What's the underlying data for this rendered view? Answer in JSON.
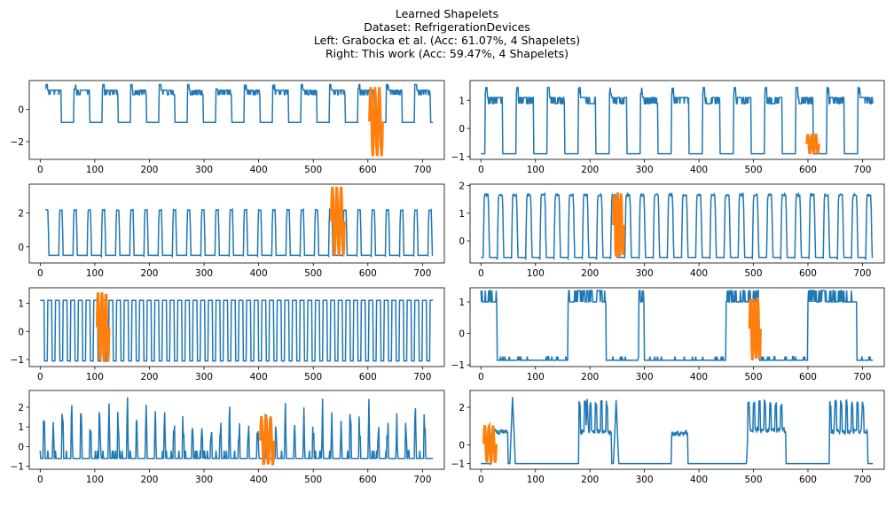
{
  "figure": {
    "title_lines": [
      "Learned Shapelets",
      "Dataset: RefrigerationDevices",
      "Left: Grabocka et al. (Acc: 61.07%, 4 Shapelets)",
      "Right: This work (Acc: 59.47%, 4 Shapelets)"
    ],
    "series_color": "#1f77b4",
    "shapelet_color": "#ff7f0e"
  },
  "chart_data": [
    {
      "id": "left-1",
      "type": "line",
      "column": "left",
      "row": 1,
      "xlim": [
        -20,
        740
      ],
      "ylim": [
        -3.1,
        1.8
      ],
      "xticks": [
        0,
        100,
        200,
        300,
        400,
        500,
        600,
        700
      ],
      "yticks": [
        -2,
        0
      ],
      "pattern": "cycle",
      "n": 720,
      "period": 52,
      "phase": 10,
      "on_frac": 0.55,
      "low": -0.8,
      "high": 1.2,
      "noise": 0.28,
      "start": 10,
      "end": 720,
      "shapelet": {
        "start": 603,
        "end": 627,
        "min": -2.9,
        "max": 1.4
      }
    },
    {
      "id": "left-2",
      "type": "line",
      "column": "left",
      "row": 2,
      "xlim": [
        -20,
        740
      ],
      "ylim": [
        -0.95,
        3.7
      ],
      "xticks": [
        0,
        100,
        200,
        300,
        400,
        500,
        600,
        700
      ],
      "yticks": [
        0,
        2
      ],
      "pattern": "pulses",
      "n": 720,
      "period": 26,
      "phase": 8,
      "on_frac": 0.3,
      "low": -0.5,
      "high": 2.2,
      "noise": 0.05,
      "start": 10,
      "end": 720,
      "shapelet": {
        "start": 533,
        "end": 557,
        "min": -0.5,
        "max": 3.55
      }
    },
    {
      "id": "left-3",
      "type": "line",
      "column": "left",
      "row": 3,
      "xlim": [
        -20,
        740
      ],
      "ylim": [
        -1.25,
        1.55
      ],
      "xticks": [
        0,
        100,
        200,
        300,
        400,
        500,
        600,
        700
      ],
      "yticks": [
        -1,
        0,
        1
      ],
      "pattern": "square",
      "n": 720,
      "period": 14,
      "phase": 0,
      "on_frac": 0.55,
      "low": -1.05,
      "high": 1.1,
      "noise": 0.02,
      "start": 0,
      "end": 720,
      "shapelet": {
        "start": 104,
        "end": 126,
        "min": -1.1,
        "max": 1.4
      }
    },
    {
      "id": "left-4",
      "type": "line",
      "column": "left",
      "row": 4,
      "xlim": [
        -20,
        740
      ],
      "ylim": [
        -1.15,
        2.85
      ],
      "xticks": [
        0,
        100,
        200,
        300,
        400,
        500,
        600,
        700
      ],
      "yticks": [
        -1,
        0,
        1,
        2
      ],
      "pattern": "spikes",
      "n": 720,
      "period": 17,
      "phase": 5,
      "on_frac": 0.22,
      "low": -0.6,
      "high": 2.6,
      "noise": 0.2,
      "start": 0,
      "end": 720,
      "shapelet": {
        "start": 403,
        "end": 428,
        "min": -0.95,
        "max": 1.55
      }
    },
    {
      "id": "right-1",
      "type": "line",
      "column": "right",
      "row": 1,
      "xlim": [
        -20,
        740
      ],
      "ylim": [
        -1.1,
        1.7
      ],
      "xticks": [
        0,
        100,
        200,
        300,
        400,
        500,
        600,
        700
      ],
      "yticks": [
        -1,
        0,
        1
      ],
      "pattern": "cycle",
      "n": 720,
      "period": 57,
      "phase": 8,
      "on_frac": 0.55,
      "low": -0.9,
      "high": 1.1,
      "noise": 0.22,
      "start": 0,
      "end": 720,
      "shapelet": {
        "start": 598,
        "end": 620,
        "min": -0.9,
        "max": -0.2
      }
    },
    {
      "id": "right-2",
      "type": "line",
      "column": "right",
      "row": 2,
      "xlim": [
        -20,
        740
      ],
      "ylim": [
        -0.8,
        2.05
      ],
      "xticks": [
        0,
        100,
        200,
        300,
        400,
        500,
        600,
        700
      ],
      "yticks": [
        0,
        1,
        2
      ],
      "pattern": "pulses",
      "n": 720,
      "period": 26,
      "phase": 4,
      "on_frac": 0.45,
      "low": -0.6,
      "high": 1.7,
      "noise": 0.08,
      "start": 0,
      "end": 720,
      "shapelet": {
        "start": 243,
        "end": 262,
        "min": -0.6,
        "max": 1.75
      }
    },
    {
      "id": "right-3",
      "type": "line",
      "column": "right",
      "row": 3,
      "xlim": [
        -20,
        740
      ],
      "ylim": [
        -1.05,
        1.45
      ],
      "xticks": [
        0,
        100,
        200,
        300,
        400,
        500,
        600,
        700
      ],
      "yticks": [
        -1,
        0,
        1
      ],
      "pattern": "blocks",
      "n": 720,
      "blocks": [
        [
          0,
          30
        ],
        [
          160,
          230
        ],
        [
          290,
          300
        ],
        [
          450,
          510
        ],
        [
          600,
          690
        ]
      ],
      "dips": [
        [
          230,
          242
        ],
        [
          270,
          280
        ]
      ],
      "low": -0.85,
      "high": 1.0,
      "noise": 0.18,
      "start": 0,
      "end": 720,
      "shapelet": {
        "start": 493,
        "end": 513,
        "min": -0.85,
        "max": 1.15
      }
    },
    {
      "id": "right-4",
      "type": "line",
      "column": "right",
      "row": 4,
      "xlim": [
        -20,
        740
      ],
      "ylim": [
        -1.3,
        2.9
      ],
      "xticks": [
        0,
        100,
        200,
        300,
        400,
        500,
        600,
        700
      ],
      "yticks": [
        -1,
        0,
        2
      ],
      "pattern": "mixed",
      "n": 720,
      "plateaus": [
        [
          20,
          50,
          0.7
        ],
        [
          180,
          240,
          0.7
        ],
        [
          350,
          380,
          0.6
        ],
        [
          490,
          560,
          0.8
        ],
        [
          640,
          710,
          0.7
        ]
      ],
      "peaks": [
        [
          58,
          2.55
        ],
        [
          195,
          2.45
        ],
        [
          248,
          2.4
        ],
        [
          492,
          2.3
        ],
        [
          650,
          2.4
        ],
        [
          700,
          2.3
        ]
      ],
      "low": -1.0,
      "noise": 0.12,
      "start": 0,
      "end": 720,
      "shapelet": {
        "start": 5,
        "end": 28,
        "min": -0.95,
        "max": 1.05
      }
    }
  ]
}
